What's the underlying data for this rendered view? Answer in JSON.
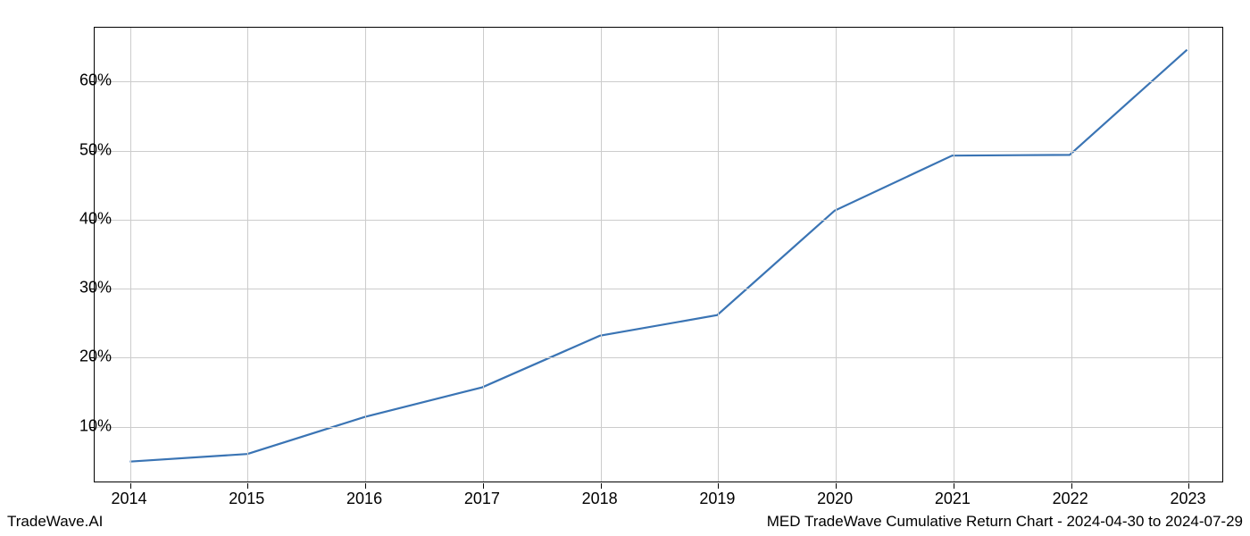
{
  "chart": {
    "type": "line",
    "background_color": "#ffffff",
    "grid_color": "#cccccc",
    "border_color": "#000000",
    "line_color": "#3a74b4",
    "line_width": 2.2,
    "text_color": "#000000",
    "tick_fontsize": 18,
    "x_categories": [
      "2014",
      "2015",
      "2016",
      "2017",
      "2018",
      "2019",
      "2020",
      "2021",
      "2022",
      "2023"
    ],
    "x_values": [
      2014,
      2015,
      2016,
      2017,
      2018,
      2019,
      2020,
      2021,
      2022,
      2023
    ],
    "y_values": [
      4.7,
      5.8,
      11.2,
      15.5,
      23.0,
      26.0,
      41.2,
      49.2,
      49.3,
      64.6
    ],
    "xlim": [
      2013.7,
      2023.3
    ],
    "ylim": [
      1.8,
      67.8
    ],
    "y_ticks": [
      10,
      20,
      30,
      40,
      50,
      60
    ],
    "y_tick_labels": [
      "10%",
      "20%",
      "30%",
      "40%",
      "50%",
      "60%"
    ]
  },
  "footer": {
    "left_text": "TradeWave.AI",
    "right_text": "MED TradeWave Cumulative Return Chart - 2024-04-30 to 2024-07-29"
  }
}
